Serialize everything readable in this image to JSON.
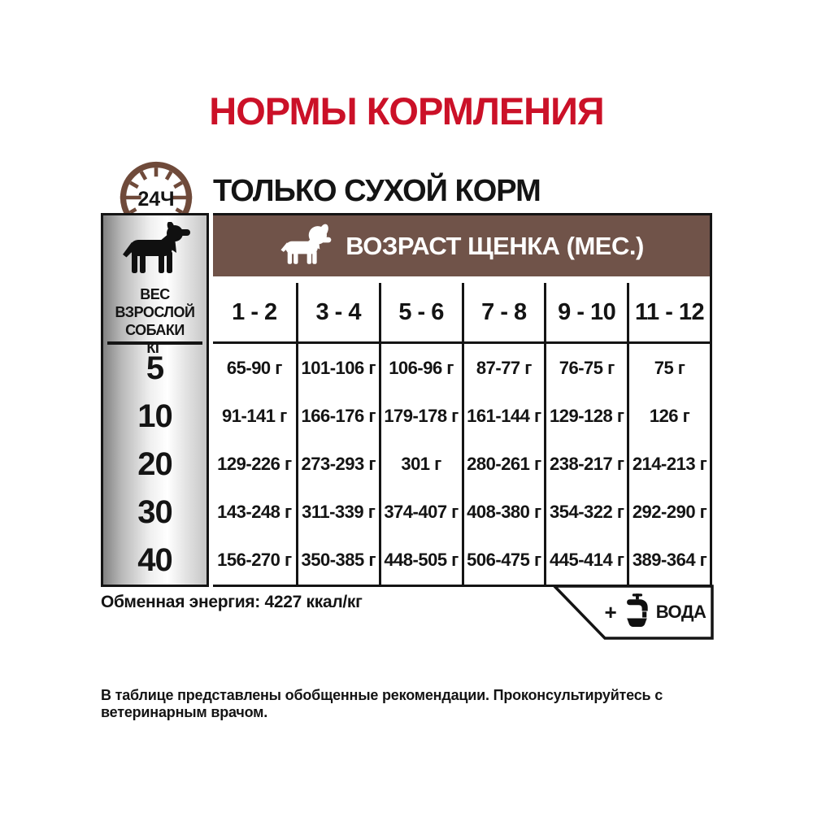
{
  "title": "НОРМЫ КОРМЛЕНИЯ",
  "subtitle": "ТОЛЬКО СУХОЙ КОРМ",
  "clock_label": "24Ч",
  "colors": {
    "red": "#cb1128",
    "brown": "#705349",
    "clock_brown": "#6f4a3a",
    "line": "#141414",
    "silver_dark": "#828282",
    "silver_light": "#ffffff"
  },
  "icons": [
    "clock-24h-icon",
    "adult-dog-icon",
    "puppy-icon",
    "water-tap-icon"
  ],
  "table": {
    "weight_header": "ВЕС ВЗРОСЛОЙ\nСОБАКИ\nКГ",
    "age_header": "ВОЗРАСТ ЩЕНКА (МЕС.)",
    "age_columns": [
      "1 - 2",
      "3 - 4",
      "5 - 6",
      "7 - 8",
      "9 - 10",
      "11 - 12"
    ],
    "rows": [
      {
        "weight": "5",
        "values": [
          "65-90 г",
          "101-106 г",
          "106-96 г",
          "87-77 г",
          "76-75 г",
          "75 г"
        ]
      },
      {
        "weight": "10",
        "values": [
          "91-141 г",
          "166-176 г",
          "179-178 г",
          "161-144 г",
          "129-128 г",
          "126 г"
        ]
      },
      {
        "weight": "20",
        "values": [
          "129-226 г",
          "273-293 г",
          "301 г",
          "280-261 г",
          "238-217 г",
          "214-213 г"
        ]
      },
      {
        "weight": "30",
        "values": [
          "143-248 г",
          "311-339 г",
          "374-407 г",
          "408-380 г",
          "354-322 г",
          "292-290 г"
        ]
      },
      {
        "weight": "40",
        "values": [
          "156-270 г",
          "350-385 г",
          "448-505 г",
          "506-475 г",
          "445-414 г",
          "389-364 г"
        ]
      }
    ]
  },
  "energy_note": "Обменная энергия: 4227 ккал/кг",
  "water_plus": "+",
  "water_label": "ВОДА",
  "footnote": "В таблице представлены обобщенные рекомендации. Проконсультируйтесь с ветеринарным врачом."
}
